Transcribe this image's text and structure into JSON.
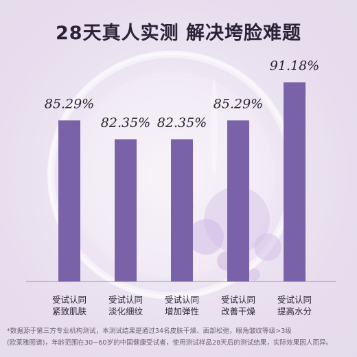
{
  "title": "28天真人实测 解决垮脸难题",
  "chart_data": {
    "type": "bar",
    "categories": [
      [
        "受试认同",
        "紧致肌肤"
      ],
      [
        "受试认同",
        "淡化细纹"
      ],
      [
        "受试认同",
        "增加弹性"
      ],
      [
        "受试认同",
        "改善干燥"
      ],
      [
        "受试认同",
        "提高水分"
      ]
    ],
    "values": [
      85.29,
      82.35,
      82.35,
      85.29,
      91.18
    ],
    "value_labels": [
      "85.29%",
      "82.35%",
      "82.35%",
      "85.29%",
      "91.18%"
    ],
    "ylim": [
      0,
      100
    ],
    "bar_color": "#7a62a8"
  },
  "footnote": {
    "line1": "*数据源于第三方专业机构测试，本测试结果是通过34名皮肤干燥、面部松弛，眼角皱纹等级>3级",
    "line2": "(欧莱雅图谱)，年龄范围在30~60岁的中国健康受试者，使用测试样品28天后的测试结果，实际效果因人而异。"
  }
}
